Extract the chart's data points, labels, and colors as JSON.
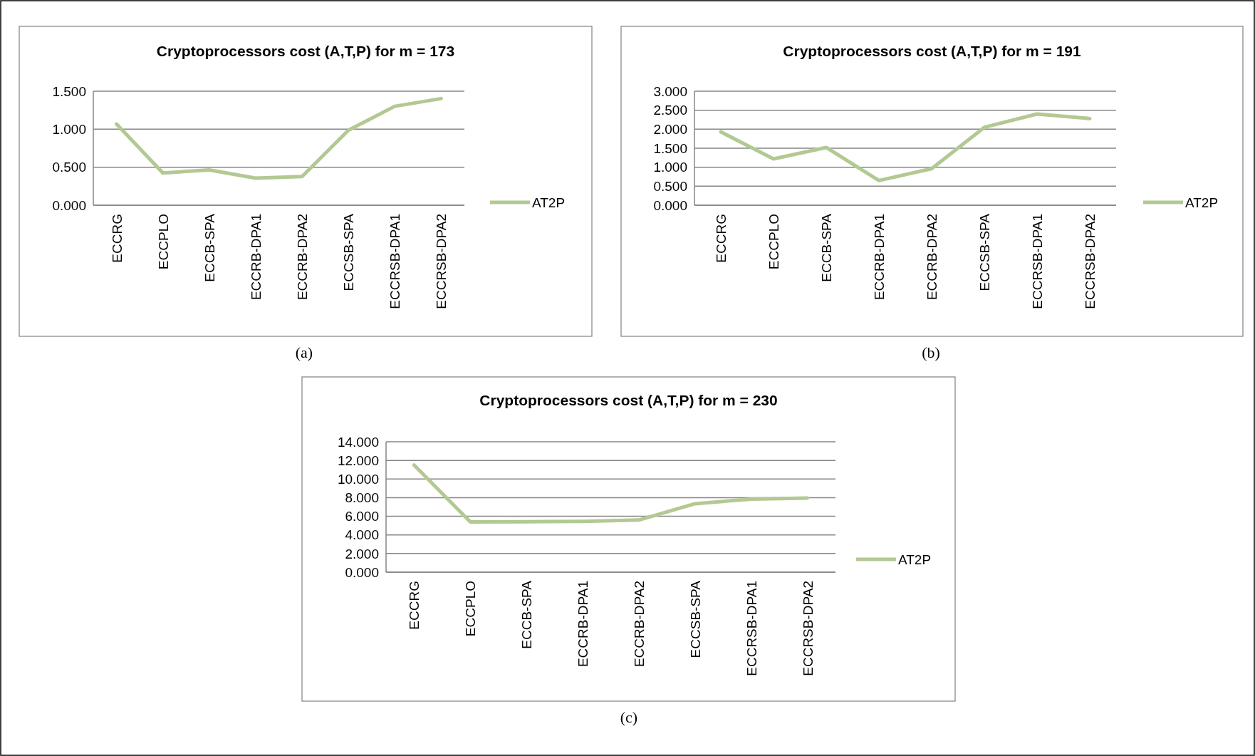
{
  "chart_data": [
    {
      "type": "line",
      "title": "Cryptoprocessors cost (A,T,P) for m = 173",
      "categories": [
        "ECCRG",
        "ECCPLO",
        "ECCB-SPA",
        "ECCRB-DPA1",
        "ECCRB-DPA2",
        "ECCSB-SPA",
        "ECCRSB-DPA1",
        "ECCRSB-DPA2"
      ],
      "series": [
        {
          "name": "AT2P",
          "color": "#b3c993",
          "values": [
            1.068,
            0.424,
            0.464,
            0.356,
            0.378,
            0.986,
            1.302,
            1.403
          ]
        }
      ],
      "ylim": [
        0,
        1.5
      ],
      "yticks": [
        {
          "value": 0,
          "label": "0.000"
        },
        {
          "value": 0.5,
          "label": "0.500"
        },
        {
          "value": 1,
          "label": "1.000"
        },
        {
          "value": 1.5,
          "label": "1.500"
        }
      ],
      "grid": "y",
      "legend": "right",
      "annotations": [
        "(a)"
      ]
    },
    {
      "type": "line",
      "title": "Cryptoprocessors cost (A,T,P) for m = 191",
      "categories": [
        "ECCRG",
        "ECCPLO",
        "ECCB-SPA",
        "ECCRB-DPA1",
        "ECCRB-DPA2",
        "ECCSB-SPA",
        "ECCRSB-DPA1",
        "ECCRSB-DPA2"
      ],
      "series": [
        {
          "name": "AT2P",
          "color": "#b3c993",
          "values": [
            1.93,
            1.22,
            1.52,
            0.65,
            0.96,
            2.05,
            2.4,
            2.28
          ]
        }
      ],
      "ylim": [
        0,
        3
      ],
      "yticks": [
        {
          "value": 0,
          "label": "0.000"
        },
        {
          "value": 0.5,
          "label": "0.500"
        },
        {
          "value": 1,
          "label": "1.000"
        },
        {
          "value": 1.5,
          "label": "1.500"
        },
        {
          "value": 2,
          "label": "2.000"
        },
        {
          "value": 2.5,
          "label": "2.500"
        },
        {
          "value": 3,
          "label": "3.000"
        }
      ],
      "grid": "y",
      "legend": "right",
      "annotations": [
        "(b)"
      ]
    },
    {
      "type": "line",
      "title": "Cryptoprocessors cost (A,T,P) for m = 230",
      "categories": [
        "ECCRG",
        "ECCPLO",
        "ECCB-SPA",
        "ECCRB-DPA1",
        "ECCRB-DPA2",
        "ECCSB-SPA",
        "ECCRSB-DPA1",
        "ECCRSB-DPA2"
      ],
      "series": [
        {
          "name": "AT2P",
          "color": "#b3c993",
          "values": [
            11.5,
            5.4,
            5.42,
            5.45,
            5.6,
            7.35,
            7.85,
            7.95
          ]
        }
      ],
      "ylim": [
        0,
        14
      ],
      "yticks": [
        {
          "value": 0,
          "label": "0.000"
        },
        {
          "value": 2,
          "label": "2.000"
        },
        {
          "value": 4,
          "label": "4.000"
        },
        {
          "value": 6,
          "label": "6.000"
        },
        {
          "value": 8,
          "label": "8.000"
        },
        {
          "value": 10,
          "label": "10.000"
        },
        {
          "value": 12,
          "label": "12.000"
        },
        {
          "value": 14,
          "label": "14.000"
        }
      ],
      "grid": "y",
      "legend": "right",
      "annotations": [
        "(c)"
      ]
    }
  ]
}
